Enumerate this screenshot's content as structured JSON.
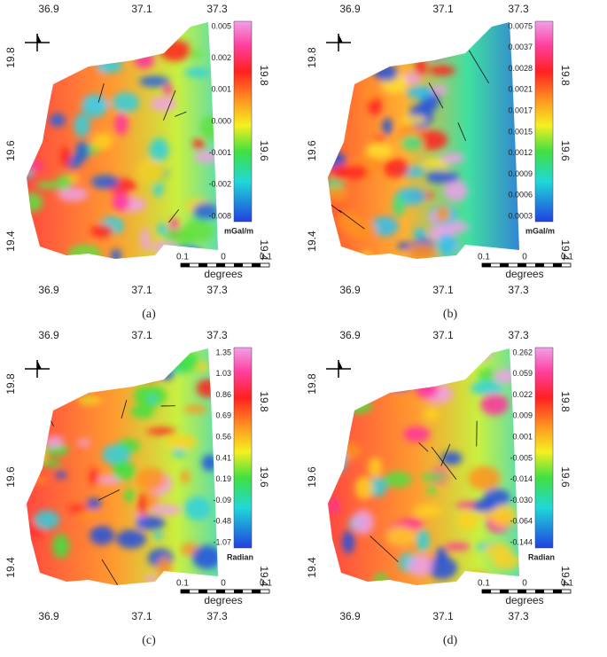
{
  "panels": [
    {
      "caption": "(a)",
      "x_ticks_top": [
        "36.9",
        "37.1",
        "37.3"
      ],
      "x_ticks_bottom": [
        "36.9",
        "37.1",
        "37.3"
      ],
      "y_ticks_left": [
        "19.8",
        "19.6",
        "19.4"
      ],
      "y_ticks_right": [
        "19.8",
        "19.6",
        "19.4"
      ],
      "colorbar": [
        "0.005",
        "0.002",
        "0.001",
        "0.000",
        "-0.001",
        "-0.002",
        "-0.008"
      ],
      "unit": "mGal/m",
      "scale": [
        "0.1",
        "0",
        "0.1"
      ],
      "scale_unit": "degrees"
    },
    {
      "caption": "(b)",
      "x_ticks_top": [
        "36.9",
        "37.1",
        "37.3"
      ],
      "x_ticks_bottom": [
        "36.9",
        "37.1",
        "37.3"
      ],
      "y_ticks_left": [
        "19.8",
        "19.6",
        "19.4"
      ],
      "y_ticks_right": [
        "19.8",
        "19.6",
        "19.4"
      ],
      "colorbar": [
        "0.0075",
        "0.0037",
        "0.0028",
        "0.0021",
        "0.0017",
        "0.0015",
        "0.0012",
        "0.0009",
        "0.0006",
        "0.0003"
      ],
      "unit": "mGal/m",
      "scale": [
        "0.1",
        "0",
        "0.1"
      ],
      "scale_unit": "degrees"
    },
    {
      "caption": "(c)",
      "x_ticks_top": [
        "36.9",
        "37.1",
        "37.3"
      ],
      "x_ticks_bottom": [
        "36.9",
        "37.1",
        "37.3"
      ],
      "y_ticks_left": [
        "19.8",
        "19.6",
        "19.4"
      ],
      "y_ticks_right": [
        "19.8",
        "19.6",
        "19.4"
      ],
      "colorbar": [
        "1.35",
        "1.03",
        "0.86",
        "0.69",
        "0.56",
        "0.41",
        "0.19",
        "-0.09",
        "-0.48",
        "-1.07"
      ],
      "unit": "Radian",
      "scale": [
        "0.1",
        "0",
        "0.1"
      ],
      "scale_unit": "degrees"
    },
    {
      "caption": "(d)",
      "x_ticks_top": [
        "36.9",
        "37.1",
        "37.3"
      ],
      "x_ticks_bottom": [
        "36.9",
        "37.1",
        "37.3"
      ],
      "y_ticks_left": [
        "19.8",
        "19.6",
        "19.4"
      ],
      "y_ticks_right": [
        "19.8",
        "19.6",
        "19.4"
      ],
      "colorbar": [
        "0.262",
        "0.059",
        "0.022",
        "0.009",
        "0.001",
        "-0.005",
        "-0.014",
        "-0.030",
        "-0.064",
        "-0.144"
      ],
      "unit": "Radian",
      "scale": [
        "0.1",
        "0",
        "0.1"
      ],
      "scale_unit": "degrees"
    }
  ]
}
